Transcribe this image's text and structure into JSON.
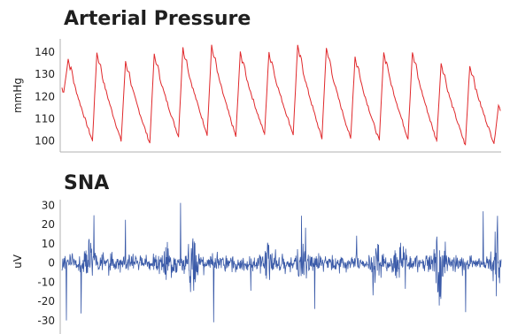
{
  "chart_data": [
    {
      "type": "line",
      "title": "Arterial Pressure",
      "ylabel": "mmHg",
      "xlabel": "",
      "yticks": [
        100,
        110,
        120,
        130,
        140
      ],
      "ylim": [
        95,
        146
      ],
      "grid": false,
      "color": "#e0282b",
      "beats": [
        {
          "peak": 137,
          "trough": 100
        },
        {
          "peak": 140,
          "trough": 100
        },
        {
          "peak": 136,
          "trough": 99
        },
        {
          "peak": 139,
          "trough": 102
        },
        {
          "peak": 142,
          "trough": 103
        },
        {
          "peak": 143,
          "trough": 102
        },
        {
          "peak": 140,
          "trough": 103
        },
        {
          "peak": 140,
          "trough": 103
        },
        {
          "peak": 143,
          "trough": 101
        },
        {
          "peak": 142,
          "trough": 101
        },
        {
          "peak": 138,
          "trough": 100
        },
        {
          "peak": 140,
          "trough": 101
        },
        {
          "peak": 140,
          "trough": 100
        },
        {
          "peak": 135,
          "trough": 98
        },
        {
          "peak": 134,
          "trough": 99
        },
        {
          "peak": 116,
          "trough": 99
        }
      ]
    },
    {
      "type": "line",
      "title": "SNA",
      "ylabel": "uV",
      "xlabel": "",
      "yticks": [
        -30,
        -20,
        -10,
        0,
        10,
        20,
        30
      ],
      "ylim": [
        -37,
        33
      ],
      "grid": false,
      "color": "#3a5aa8",
      "bursts": [
        {
          "pos": 0.06,
          "amp": 12
        },
        {
          "pos": 0.24,
          "amp": 14
        },
        {
          "pos": 0.3,
          "amp": 20
        },
        {
          "pos": 0.47,
          "amp": 12
        },
        {
          "pos": 0.55,
          "amp": 12
        },
        {
          "pos": 0.72,
          "amp": 12
        },
        {
          "pos": 0.77,
          "amp": 22
        },
        {
          "pos": 0.86,
          "amp": 24
        },
        {
          "pos": 0.99,
          "amp": 20
        }
      ]
    }
  ]
}
